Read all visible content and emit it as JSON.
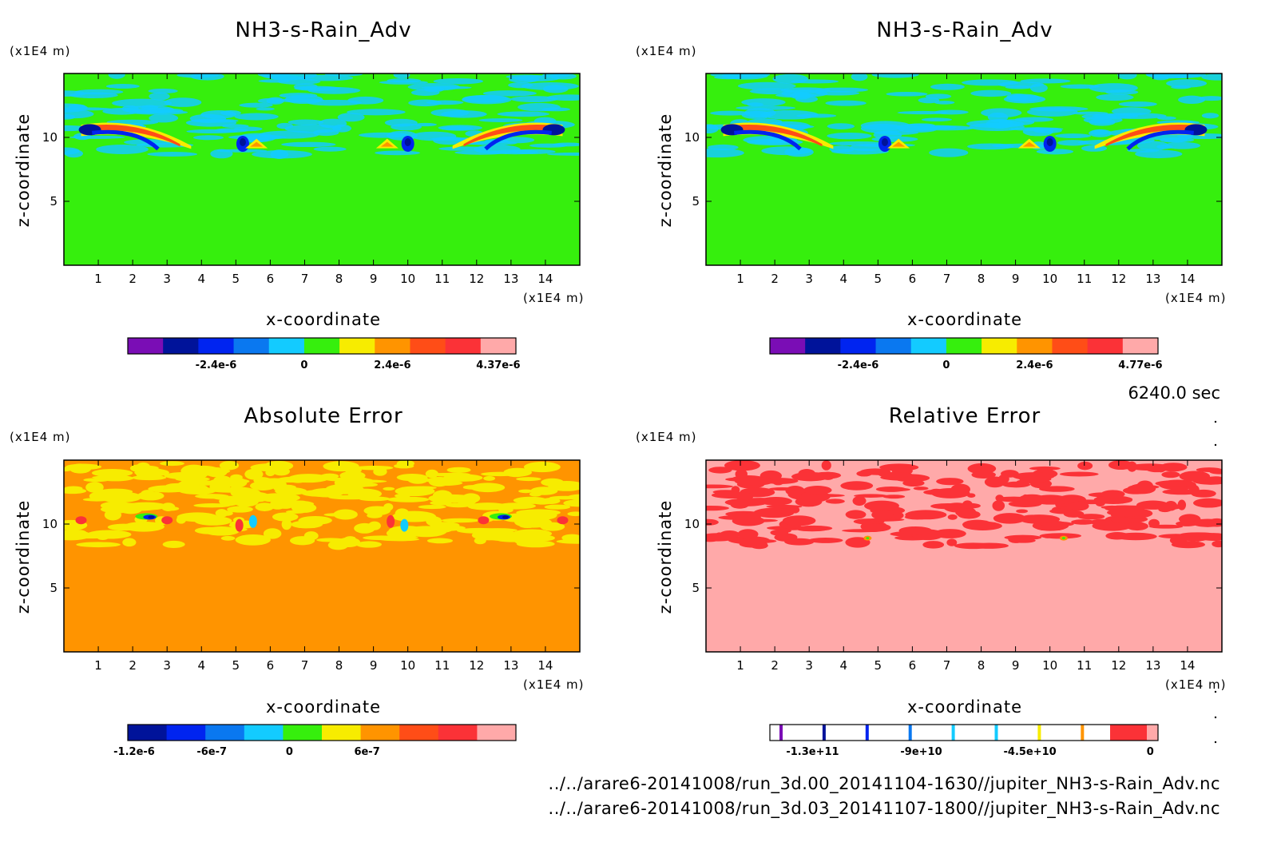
{
  "time_label": "6240.0 sec",
  "footer": {
    "line1": "../../arare6-20141008/run_3d.00_20141104-1630//jupiter_NH3-s-Rain_Adv.nc",
    "line2": "../../arare6-20141008/run_3d.03_20141107-1800//jupiter_NH3-s-Rain_Adv.nc"
  },
  "colors": {
    "purple": "#7a0db5",
    "navy": "#00139a",
    "blue": "#0024f0",
    "mid_blue": "#0a78f0",
    "cyan": "#13cbff",
    "green": "#36ef0d",
    "yellow": "#f7ec00",
    "orange": "#ff9400",
    "red_orange": "#ff4d17",
    "red": "#fb3237",
    "pink": "#ffa9a9"
  },
  "chart_data": [
    {
      "type": "heatmap",
      "title": "NH3-s-Rain_Adv",
      "xlabel": "x-coordinate",
      "ylabel": "z-coordinate",
      "x_unit": "(x1E4 m)",
      "y_unit": "(x1E4 m)",
      "xlim": [
        0,
        15
      ],
      "ylim": [
        0,
        15
      ],
      "xticks": [
        1,
        2,
        3,
        4,
        5,
        6,
        7,
        8,
        9,
        10,
        11,
        12,
        13,
        14
      ],
      "yticks": [
        5,
        10
      ],
      "background": "green",
      "colorbar": {
        "colors": [
          "purple",
          "navy",
          "blue",
          "mid_blue",
          "cyan",
          "green",
          "yellow",
          "orange",
          "red_orange",
          "red",
          "pink"
        ],
        "tick_labels": [
          "-2.4e-6",
          "0",
          "2.4e-6",
          "4.37e-6"
        ],
        "tick_index": [
          2.5,
          5,
          7.5,
          10.5
        ]
      }
    },
    {
      "type": "heatmap",
      "title": "NH3-s-Rain_Adv",
      "xlabel": "x-coordinate",
      "ylabel": "z-coordinate",
      "x_unit": "(x1E4 m)",
      "y_unit": "(x1E4 m)",
      "xlim": [
        0,
        15
      ],
      "ylim": [
        0,
        15
      ],
      "xticks": [
        1,
        2,
        3,
        4,
        5,
        6,
        7,
        8,
        9,
        10,
        11,
        12,
        13,
        14
      ],
      "yticks": [
        5,
        10
      ],
      "background": "green",
      "colorbar": {
        "colors": [
          "purple",
          "navy",
          "blue",
          "mid_blue",
          "cyan",
          "green",
          "yellow",
          "orange",
          "red_orange",
          "red",
          "pink"
        ],
        "tick_labels": [
          "-2.4e-6",
          "0",
          "2.4e-6",
          "4.77e-6"
        ],
        "tick_index": [
          2.5,
          5,
          7.5,
          10.5
        ]
      }
    },
    {
      "type": "heatmap",
      "title": "Absolute Error",
      "xlabel": "x-coordinate",
      "ylabel": "z-coordinate",
      "x_unit": "(x1E4 m)",
      "y_unit": "(x1E4 m)",
      "xlim": [
        0,
        15
      ],
      "ylim": [
        0,
        15
      ],
      "xticks": [
        1,
        2,
        3,
        4,
        5,
        6,
        7,
        8,
        9,
        10,
        11,
        12,
        13,
        14
      ],
      "yticks": [
        5,
        10
      ],
      "background": "orange",
      "colorbar": {
        "colors": [
          "navy",
          "blue",
          "mid_blue",
          "cyan",
          "green",
          "yellow",
          "orange",
          "red_orange",
          "red",
          "pink"
        ],
        "tick_labels": [
          "-1.2e-6",
          "-6e-7",
          "0",
          "6e-7"
        ],
        "tick_index": [
          0,
          2,
          4,
          6
        ]
      }
    },
    {
      "type": "heatmap",
      "title": "Relative Error",
      "xlabel": "x-coordinate",
      "ylabel": "z-coordinate",
      "x_unit": "(x1E4 m)",
      "y_unit": "(x1E4 m)",
      "xlim": [
        0,
        15
      ],
      "ylim": [
        0,
        15
      ],
      "xticks": [
        1,
        2,
        3,
        4,
        5,
        6,
        7,
        8,
        9,
        10,
        11,
        12,
        13,
        14
      ],
      "yticks": [
        5,
        10
      ],
      "background": "pink",
      "colorbar": {
        "style": "lines",
        "line_colors": [
          "purple",
          "navy",
          "blue",
          "mid_blue",
          "cyan",
          "cyan",
          "yellow",
          "orange",
          "red_orange"
        ],
        "tick_labels": [
          "-1.3e+11",
          "-9e+10",
          "-4.5e+10",
          "0"
        ],
        "tick_index": [
          1,
          4,
          7,
          10
        ]
      }
    }
  ]
}
